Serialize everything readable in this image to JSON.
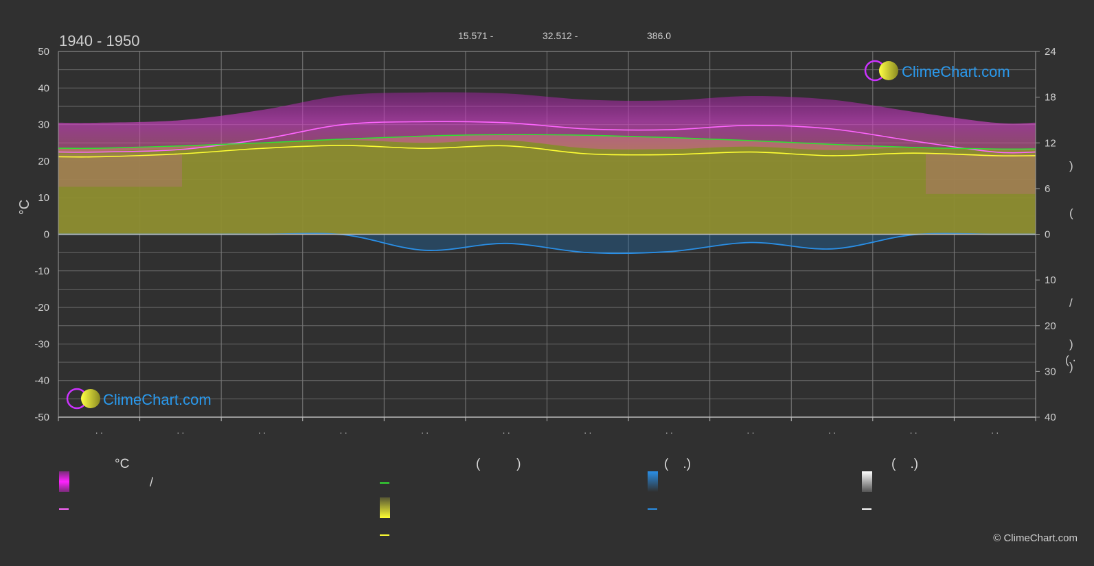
{
  "chart_data": {
    "type": "area",
    "title": "1940 - 1950",
    "header_stats": [
      "15.571 -",
      "32.512 -",
      "386.0"
    ],
    "ylabel": "°C",
    "ylim": [
      -50,
      50
    ],
    "yticks": [
      50,
      40,
      30,
      20,
      10,
      0,
      -10,
      -20,
      -30,
      -40,
      -50
    ],
    "right_axis_top": {
      "ticks": [
        24,
        18,
        12,
        6,
        0
      ],
      "label_fragments": [
        ")",
        "("
      ]
    },
    "right_axis_bottom": {
      "ticks": [
        0,
        10,
        20,
        30,
        40
      ],
      "label_fragments": [
        "/",
        ")",
        "( ·",
        ")"
      ]
    },
    "x_month_labels": [
      ". .",
      ". .",
      ". .",
      ". .",
      ". .",
      ". .",
      ". .",
      ". .",
      ". .",
      ". .",
      ". .",
      ". ."
    ],
    "grid": true,
    "months": [
      1,
      2,
      3,
      4,
      5,
      6,
      7,
      8,
      9,
      10,
      11,
      12
    ],
    "series": [
      {
        "name": "max_temp_monthly",
        "color": "#ff66ff",
        "values": [
          22.5,
          23.2,
          26.0,
          30.0,
          30.8,
          30.5,
          28.8,
          28.6,
          29.8,
          28.8,
          25.5,
          22.5
        ]
      },
      {
        "name": "mean_temp_monthly",
        "color": "#ffff33",
        "values": [
          21.2,
          22.0,
          23.5,
          24.3,
          23.5,
          24.2,
          22.0,
          21.8,
          22.5,
          21.5,
          22.2,
          21.5
        ]
      },
      {
        "name": "daylight_hours",
        "color": "#33dd33",
        "values": [
          11.3,
          11.6,
          12.0,
          12.5,
          12.9,
          13.1,
          13.0,
          12.7,
          12.3,
          11.8,
          11.4,
          11.2
        ]
      },
      {
        "name": "precipitation_mm_daily",
        "color": "#2a8fe6",
        "values": [
          0.0,
          0.0,
          0.0,
          0.1,
          3.5,
          2.0,
          4.0,
          3.8,
          1.8,
          3.2,
          0.1,
          0.0
        ]
      }
    ],
    "legend": {
      "headers": [
        "°C",
        "(          )",
        "(    .)",
        "(    .)"
      ],
      "labels": [
        "/"
      ]
    }
  },
  "colors": {
    "background": "#303030",
    "grid": "#6a6a6a",
    "temp_range": "#c01fc0",
    "sunshine": "#8a8a2a",
    "rain": "#1e6fb5"
  },
  "brand": {
    "logo_text": "ClimeChart.com",
    "copyright": "© ClimeChart.com"
  }
}
